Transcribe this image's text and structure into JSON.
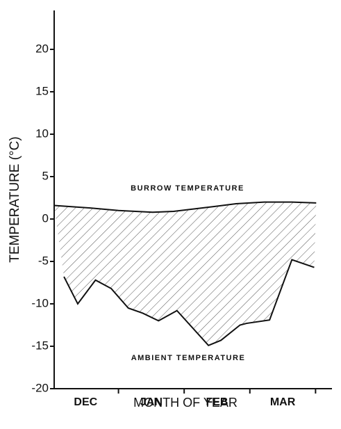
{
  "chart_data": {
    "type": "line",
    "xlabel": "MONTH OF YEAR",
    "ylabel": "TEMPERATURE (°C)",
    "categories": [
      "DEC",
      "JAN",
      "FEB",
      "MAR"
    ],
    "xlim": [
      0,
      4.25
    ],
    "xticks": [
      1,
      2,
      3,
      4
    ],
    "ylim": [
      -20,
      25
    ],
    "yticks": [
      -20,
      -15,
      -10,
      -5,
      0,
      5,
      10,
      15,
      20
    ],
    "series": [
      {
        "name": "BURROW TEMPERATURE",
        "color": "#111111",
        "x": [
          0.02,
          0.57,
          1.0,
          1.52,
          1.84,
          2.16,
          2.48,
          2.79,
          3.22,
          3.64,
          4.01
        ],
        "values": [
          1.6,
          1.3,
          1.0,
          0.8,
          0.9,
          1.2,
          1.5,
          1.8,
          2.0,
          2.0,
          1.9
        ]
      },
      {
        "name": "AMBIENT TEMPERATURE",
        "color": "#111111",
        "x": [
          0.17,
          0.38,
          0.65,
          0.89,
          1.15,
          1.37,
          1.61,
          1.89,
          2.37,
          2.56,
          2.85,
          2.95,
          3.3,
          3.64,
          3.98
        ],
        "values": [
          -6.8,
          -10.0,
          -7.2,
          -8.2,
          -10.5,
          -11.1,
          -12.0,
          -10.8,
          -14.9,
          -14.3,
          -12.5,
          -12.3,
          -11.9,
          -4.8,
          -5.7
        ]
      }
    ]
  }
}
